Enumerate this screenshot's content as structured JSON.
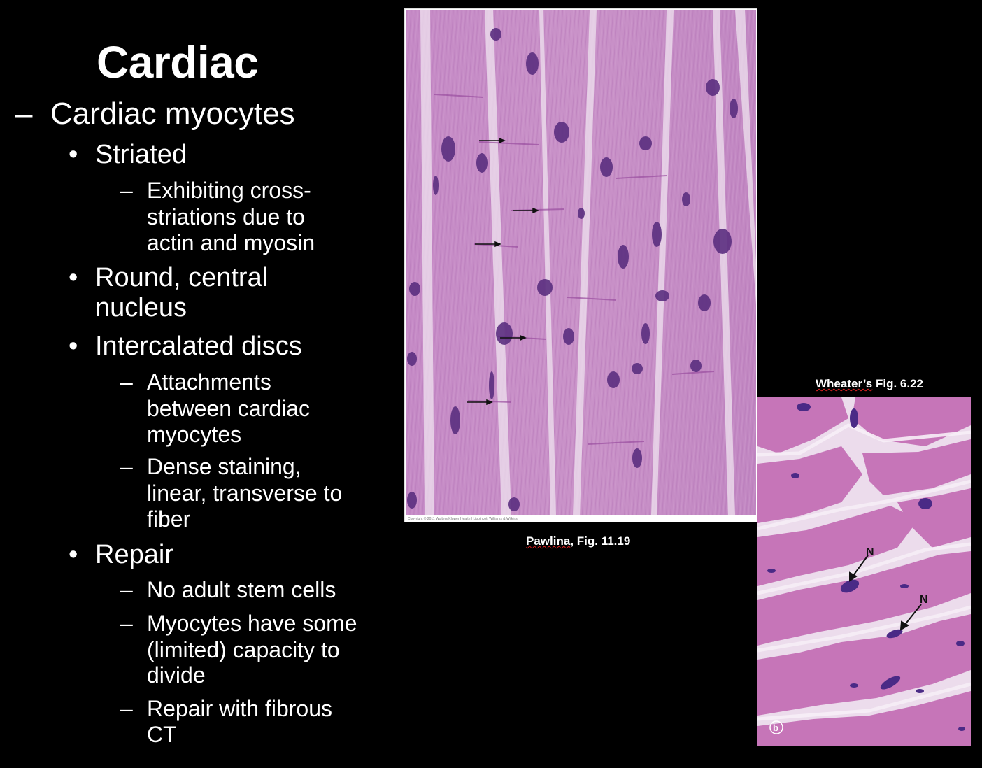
{
  "slide": {
    "title": "Cardiac",
    "level1": "Cardiac myocytes",
    "items": [
      {
        "text": "Striated"
      },
      {
        "sub": [
          "Exhibiting cross-",
          "striations due to",
          "actin and myosin"
        ]
      },
      {
        "text1": "Round, central",
        "text2": "nucleus"
      },
      {
        "text": "Intercalated discs"
      },
      {
        "sub": [
          "Attachments",
          "between cardiac",
          "myocytes"
        ]
      },
      {
        "sub": [
          "Dense staining,",
          "linear, transverse to",
          "fiber"
        ]
      },
      {
        "text": "Repair"
      },
      {
        "sub": [
          "No adult stem cells"
        ]
      },
      {
        "sub": [
          "Myocytes have some",
          "(limited) capacity to",
          "divide"
        ]
      },
      {
        "sub": [
          "Repair with fibrous",
          "CT"
        ]
      }
    ]
  },
  "figures": {
    "pawlina": {
      "caption_underlined": "Pawlina",
      "caption_rest": ", Fig. 11.19",
      "copyright": "Copyright © 2011 Wolters Kluwer Health | Lippincott Williams & Wilkins"
    },
    "wheater": {
      "caption_underlined": "Wheater’s",
      "caption_rest": " Fig. 6.22",
      "label_n1": "N",
      "label_n2": "N",
      "label_b": "b"
    }
  },
  "colors": {
    "background": "#000000",
    "tissue_pink": "#c98ac4",
    "nucleus_purple": "#5a2f7e"
  }
}
